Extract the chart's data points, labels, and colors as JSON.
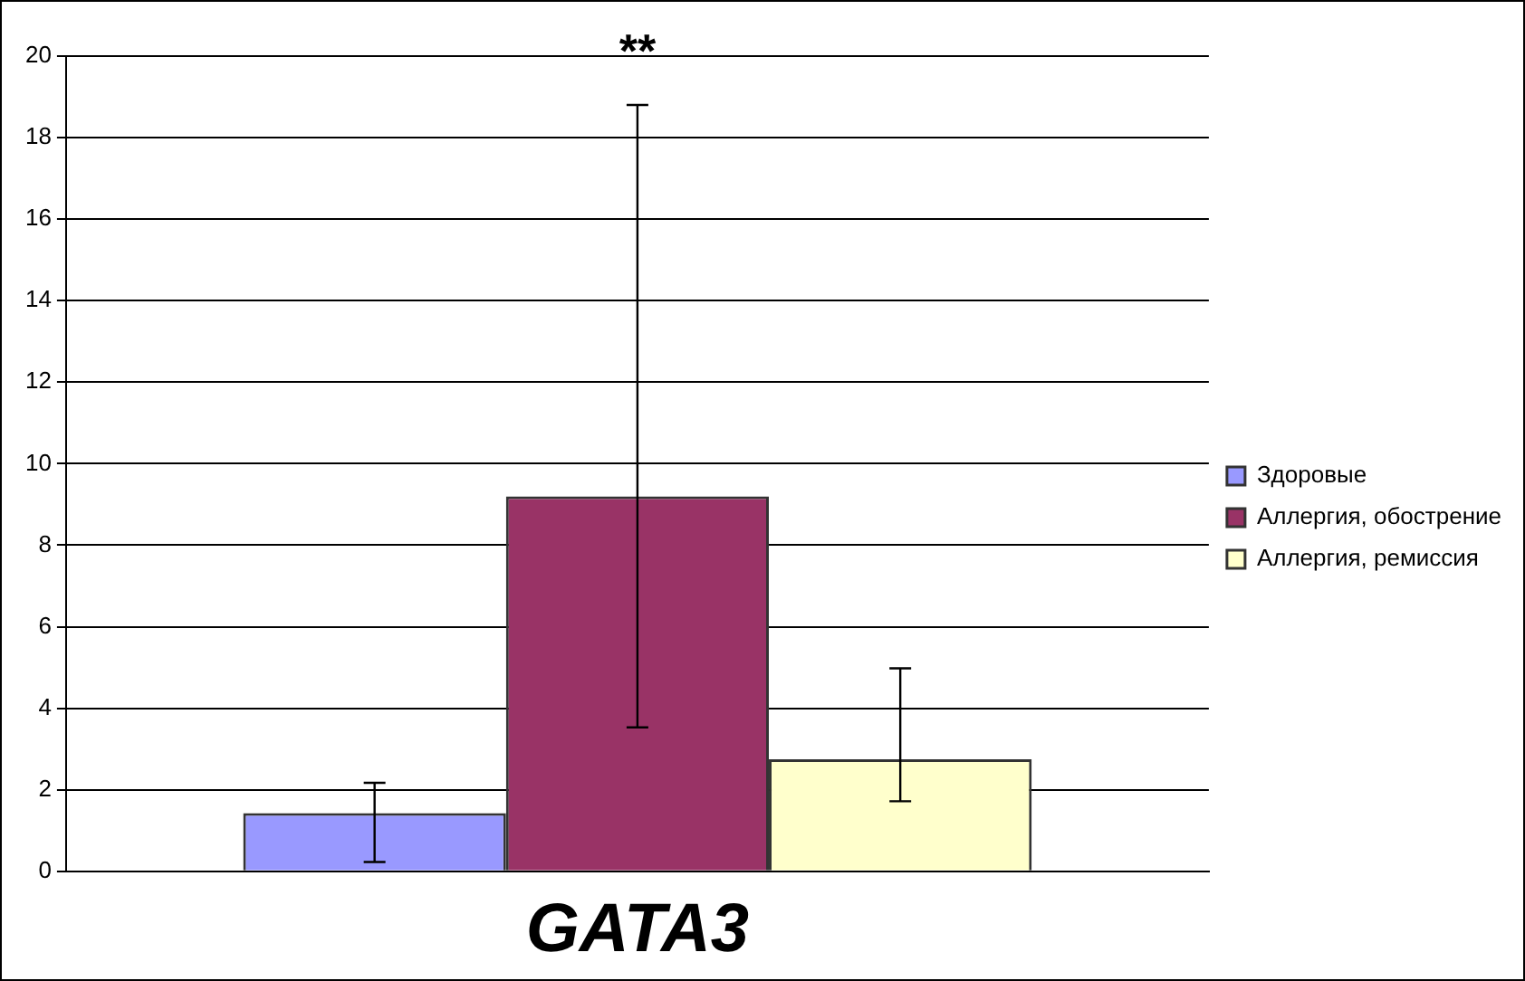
{
  "chart_data": {
    "type": "bar",
    "categories": [
      "GATA3"
    ],
    "series": [
      {
        "name": "Здоровые",
        "color": "#9999ff",
        "values": [
          1.43
        ],
        "errors": [
          [
            0.23,
            2.17
          ]
        ]
      },
      {
        "name": "Аллергия, обострение",
        "color": "#993366",
        "values": [
          9.2
        ],
        "errors": [
          [
            3.53,
            18.8
          ]
        ]
      },
      {
        "name": "Аллергия, ремиссия",
        "color": "#ffffcc",
        "values": [
          2.75
        ],
        "errors": [
          [
            1.72,
            4.98
          ]
        ]
      }
    ],
    "ylim": [
      0,
      20
    ],
    "yticks": [
      0,
      2,
      4,
      6,
      8,
      10,
      12,
      14,
      16,
      18,
      20
    ],
    "grid": "y",
    "legend": "right",
    "annotations": [
      "**"
    ]
  }
}
